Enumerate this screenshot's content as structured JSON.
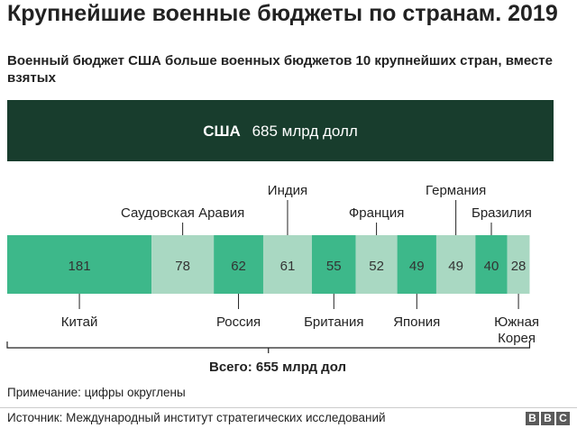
{
  "title": "Крупнейшие военные бюджеты по странам. 2019",
  "subtitle": "Военный бюджет США больше военных бюджетов 10 крупнейших стран, вместе взятых",
  "colors": {
    "usa_bar": "#183d2d",
    "dark_green": "#3db88a",
    "light_green": "#a9d8c2",
    "text_dark": "#222222",
    "text_mid": "#333333",
    "white": "#ffffff"
  },
  "chart_data": {
    "type": "bar",
    "usa": {
      "name": "США",
      "value": 685,
      "label": "685 млрд долл"
    },
    "series": [
      {
        "name": "Китай",
        "value": 181,
        "label_pos": "below",
        "shade": "dark"
      },
      {
        "name": "Саудовская Аравия",
        "value": 78,
        "label_pos": "above",
        "shade": "light"
      },
      {
        "name": "Россия",
        "value": 62,
        "label_pos": "below",
        "shade": "dark"
      },
      {
        "name": "Индия",
        "value": 61,
        "label_pos": "above",
        "shade": "light"
      },
      {
        "name": "Британия",
        "value": 55,
        "label_pos": "below",
        "shade": "dark"
      },
      {
        "name": "Франция",
        "value": 52,
        "label_pos": "above",
        "shade": "light"
      },
      {
        "name": "Япония",
        "value": 49,
        "label_pos": "below",
        "shade": "dark"
      },
      {
        "name": "Германия",
        "value": 49,
        "label_pos": "above",
        "shade": "light"
      },
      {
        "name": "Бразилия",
        "value": 40,
        "label_pos": "above",
        "shade": "dark"
      },
      {
        "name": "Южная Корея",
        "value": 28,
        "label_pos": "below",
        "shade": "light"
      }
    ],
    "total": 655
  },
  "total_label": "Всего: 655 млрд дол",
  "note": "Примечание: цифры округлены",
  "source": "Источник: Международный институт стратегических исследований",
  "logo": [
    "B",
    "B",
    "C"
  ]
}
